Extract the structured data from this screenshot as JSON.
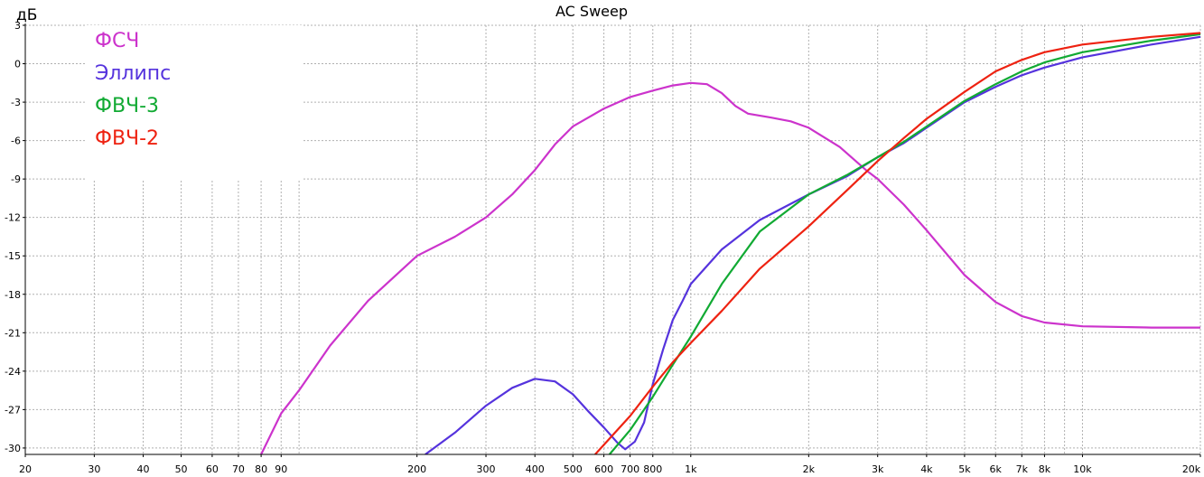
{
  "chart_data": {
    "type": "line",
    "title": "AC Sweep",
    "ylabel": "дБ",
    "xlabel": "",
    "x_scale": "log",
    "xlim": [
      20,
      20000
    ],
    "ylim": [
      -30.5,
      3
    ],
    "grid": true,
    "legend_position": "top-left",
    "x_ticks": [
      {
        "value": 20,
        "label": "20"
      },
      {
        "value": 30,
        "label": "30"
      },
      {
        "value": 40,
        "label": "40"
      },
      {
        "value": 50,
        "label": "50"
      },
      {
        "value": 60,
        "label": "60"
      },
      {
        "value": 70,
        "label": "70"
      },
      {
        "value": 80,
        "label": "80"
      },
      {
        "value": 90,
        "label": "90"
      },
      {
        "value": 200,
        "label": "200"
      },
      {
        "value": 300,
        "label": "300"
      },
      {
        "value": 400,
        "label": "400"
      },
      {
        "value": 500,
        "label": "500"
      },
      {
        "value": 600,
        "label": "600"
      },
      {
        "value": 700,
        "label": "700"
      },
      {
        "value": 800,
        "label": "800"
      },
      {
        "value": 1000,
        "label": "1k"
      },
      {
        "value": 2000,
        "label": "2k"
      },
      {
        "value": 3000,
        "label": "3k"
      },
      {
        "value": 4000,
        "label": "4k"
      },
      {
        "value": 5000,
        "label": "5k"
      },
      {
        "value": 6000,
        "label": "6k"
      },
      {
        "value": 7000,
        "label": "7k"
      },
      {
        "value": 8000,
        "label": "8k"
      },
      {
        "value": 10000,
        "label": "10k"
      },
      {
        "value": 20000,
        "label": "20k"
      }
    ],
    "y_ticks": [
      {
        "value": 3,
        "label": "3"
      },
      {
        "value": 0,
        "label": "0"
      },
      {
        "value": -3,
        "label": "-3"
      },
      {
        "value": -6,
        "label": "-6"
      },
      {
        "value": -9,
        "label": "-9"
      },
      {
        "value": -12,
        "label": "-12"
      },
      {
        "value": -15,
        "label": "-15"
      },
      {
        "value": -18,
        "label": "-18"
      },
      {
        "value": -21,
        "label": "-21"
      },
      {
        "value": -24,
        "label": "-24"
      },
      {
        "value": -27,
        "label": "-27"
      },
      {
        "value": -30,
        "label": "-30"
      }
    ],
    "series": [
      {
        "name": "ФСЧ",
        "color": "#cc33cc",
        "points": [
          [
            80,
            -30.5
          ],
          [
            90,
            -27.3
          ],
          [
            100,
            -25.5
          ],
          [
            120,
            -22
          ],
          [
            150,
            -18.5
          ],
          [
            200,
            -15
          ],
          [
            250,
            -13.5
          ],
          [
            300,
            -12
          ],
          [
            350,
            -10.2
          ],
          [
            400,
            -8.3
          ],
          [
            450,
            -6.3
          ],
          [
            500,
            -4.9
          ],
          [
            600,
            -3.5
          ],
          [
            700,
            -2.6
          ],
          [
            800,
            -2.1
          ],
          [
            900,
            -1.7
          ],
          [
            1000,
            -1.5
          ],
          [
            1100,
            -1.6
          ],
          [
            1200,
            -2.3
          ],
          [
            1300,
            -3.3
          ],
          [
            1400,
            -3.9
          ],
          [
            1600,
            -4.2
          ],
          [
            1800,
            -4.5
          ],
          [
            2000,
            -5.0
          ],
          [
            2400,
            -6.5
          ],
          [
            2800,
            -8.3
          ],
          [
            3000,
            -9.0
          ],
          [
            3500,
            -11.0
          ],
          [
            4000,
            -13.0
          ],
          [
            5000,
            -16.5
          ],
          [
            6000,
            -18.6
          ],
          [
            7000,
            -19.7
          ],
          [
            8000,
            -20.2
          ],
          [
            10000,
            -20.5
          ],
          [
            15000,
            -20.6
          ],
          [
            20000,
            -20.6
          ]
        ]
      },
      {
        "name": "Эллипс",
        "color": "#5533dd",
        "points": [
          [
            210,
            -30.5
          ],
          [
            250,
            -28.8
          ],
          [
            300,
            -26.7
          ],
          [
            350,
            -25.3
          ],
          [
            400,
            -24.6
          ],
          [
            450,
            -24.8
          ],
          [
            500,
            -25.8
          ],
          [
            550,
            -27.2
          ],
          [
            600,
            -28.4
          ],
          [
            650,
            -29.6
          ],
          [
            680,
            -30.1
          ],
          [
            720,
            -29.5
          ],
          [
            760,
            -28
          ],
          [
            800,
            -25
          ],
          [
            850,
            -22.3
          ],
          [
            900,
            -20
          ],
          [
            950,
            -18.6
          ],
          [
            1000,
            -17.2
          ],
          [
            1200,
            -14.5
          ],
          [
            1500,
            -12.2
          ],
          [
            2000,
            -10.2
          ],
          [
            2500,
            -8.8
          ],
          [
            3000,
            -7.3
          ],
          [
            3500,
            -6.2
          ],
          [
            4000,
            -5.0
          ],
          [
            5000,
            -3.0
          ],
          [
            6000,
            -1.8
          ],
          [
            7000,
            -0.9
          ],
          [
            8000,
            -0.3
          ],
          [
            10000,
            0.5
          ],
          [
            15000,
            1.5
          ],
          [
            20000,
            2.1
          ]
        ]
      },
      {
        "name": "ФВЧ-3",
        "color": "#11aa33",
        "points": [
          [
            620,
            -30.5
          ],
          [
            700,
            -28.6
          ],
          [
            800,
            -26
          ],
          [
            900,
            -23.5
          ],
          [
            1000,
            -21.3
          ],
          [
            1200,
            -17.2
          ],
          [
            1500,
            -13.1
          ],
          [
            2000,
            -10.2
          ],
          [
            2500,
            -8.7
          ],
          [
            3000,
            -7.3
          ],
          [
            3500,
            -6.1
          ],
          [
            4000,
            -4.9
          ],
          [
            5000,
            -2.9
          ],
          [
            6000,
            -1.6
          ],
          [
            7000,
            -0.6
          ],
          [
            8000,
            0.1
          ],
          [
            10000,
            0.9
          ],
          [
            15000,
            1.8
          ],
          [
            20000,
            2.3
          ]
        ]
      },
      {
        "name": "ФВЧ-2",
        "color": "#ee2211",
        "points": [
          [
            570,
            -30.5
          ],
          [
            700,
            -27.5
          ],
          [
            800,
            -25.2
          ],
          [
            900,
            -23.3
          ],
          [
            1000,
            -21.8
          ],
          [
            1200,
            -19.3
          ],
          [
            1500,
            -16
          ],
          [
            2000,
            -12.7
          ],
          [
            2500,
            -9.9
          ],
          [
            3000,
            -7.6
          ],
          [
            3500,
            -5.8
          ],
          [
            4000,
            -4.3
          ],
          [
            5000,
            -2.2
          ],
          [
            6000,
            -0.6
          ],
          [
            7000,
            0.3
          ],
          [
            8000,
            0.9
          ],
          [
            10000,
            1.5
          ],
          [
            15000,
            2.1
          ],
          [
            20000,
            2.4
          ]
        ]
      }
    ]
  }
}
